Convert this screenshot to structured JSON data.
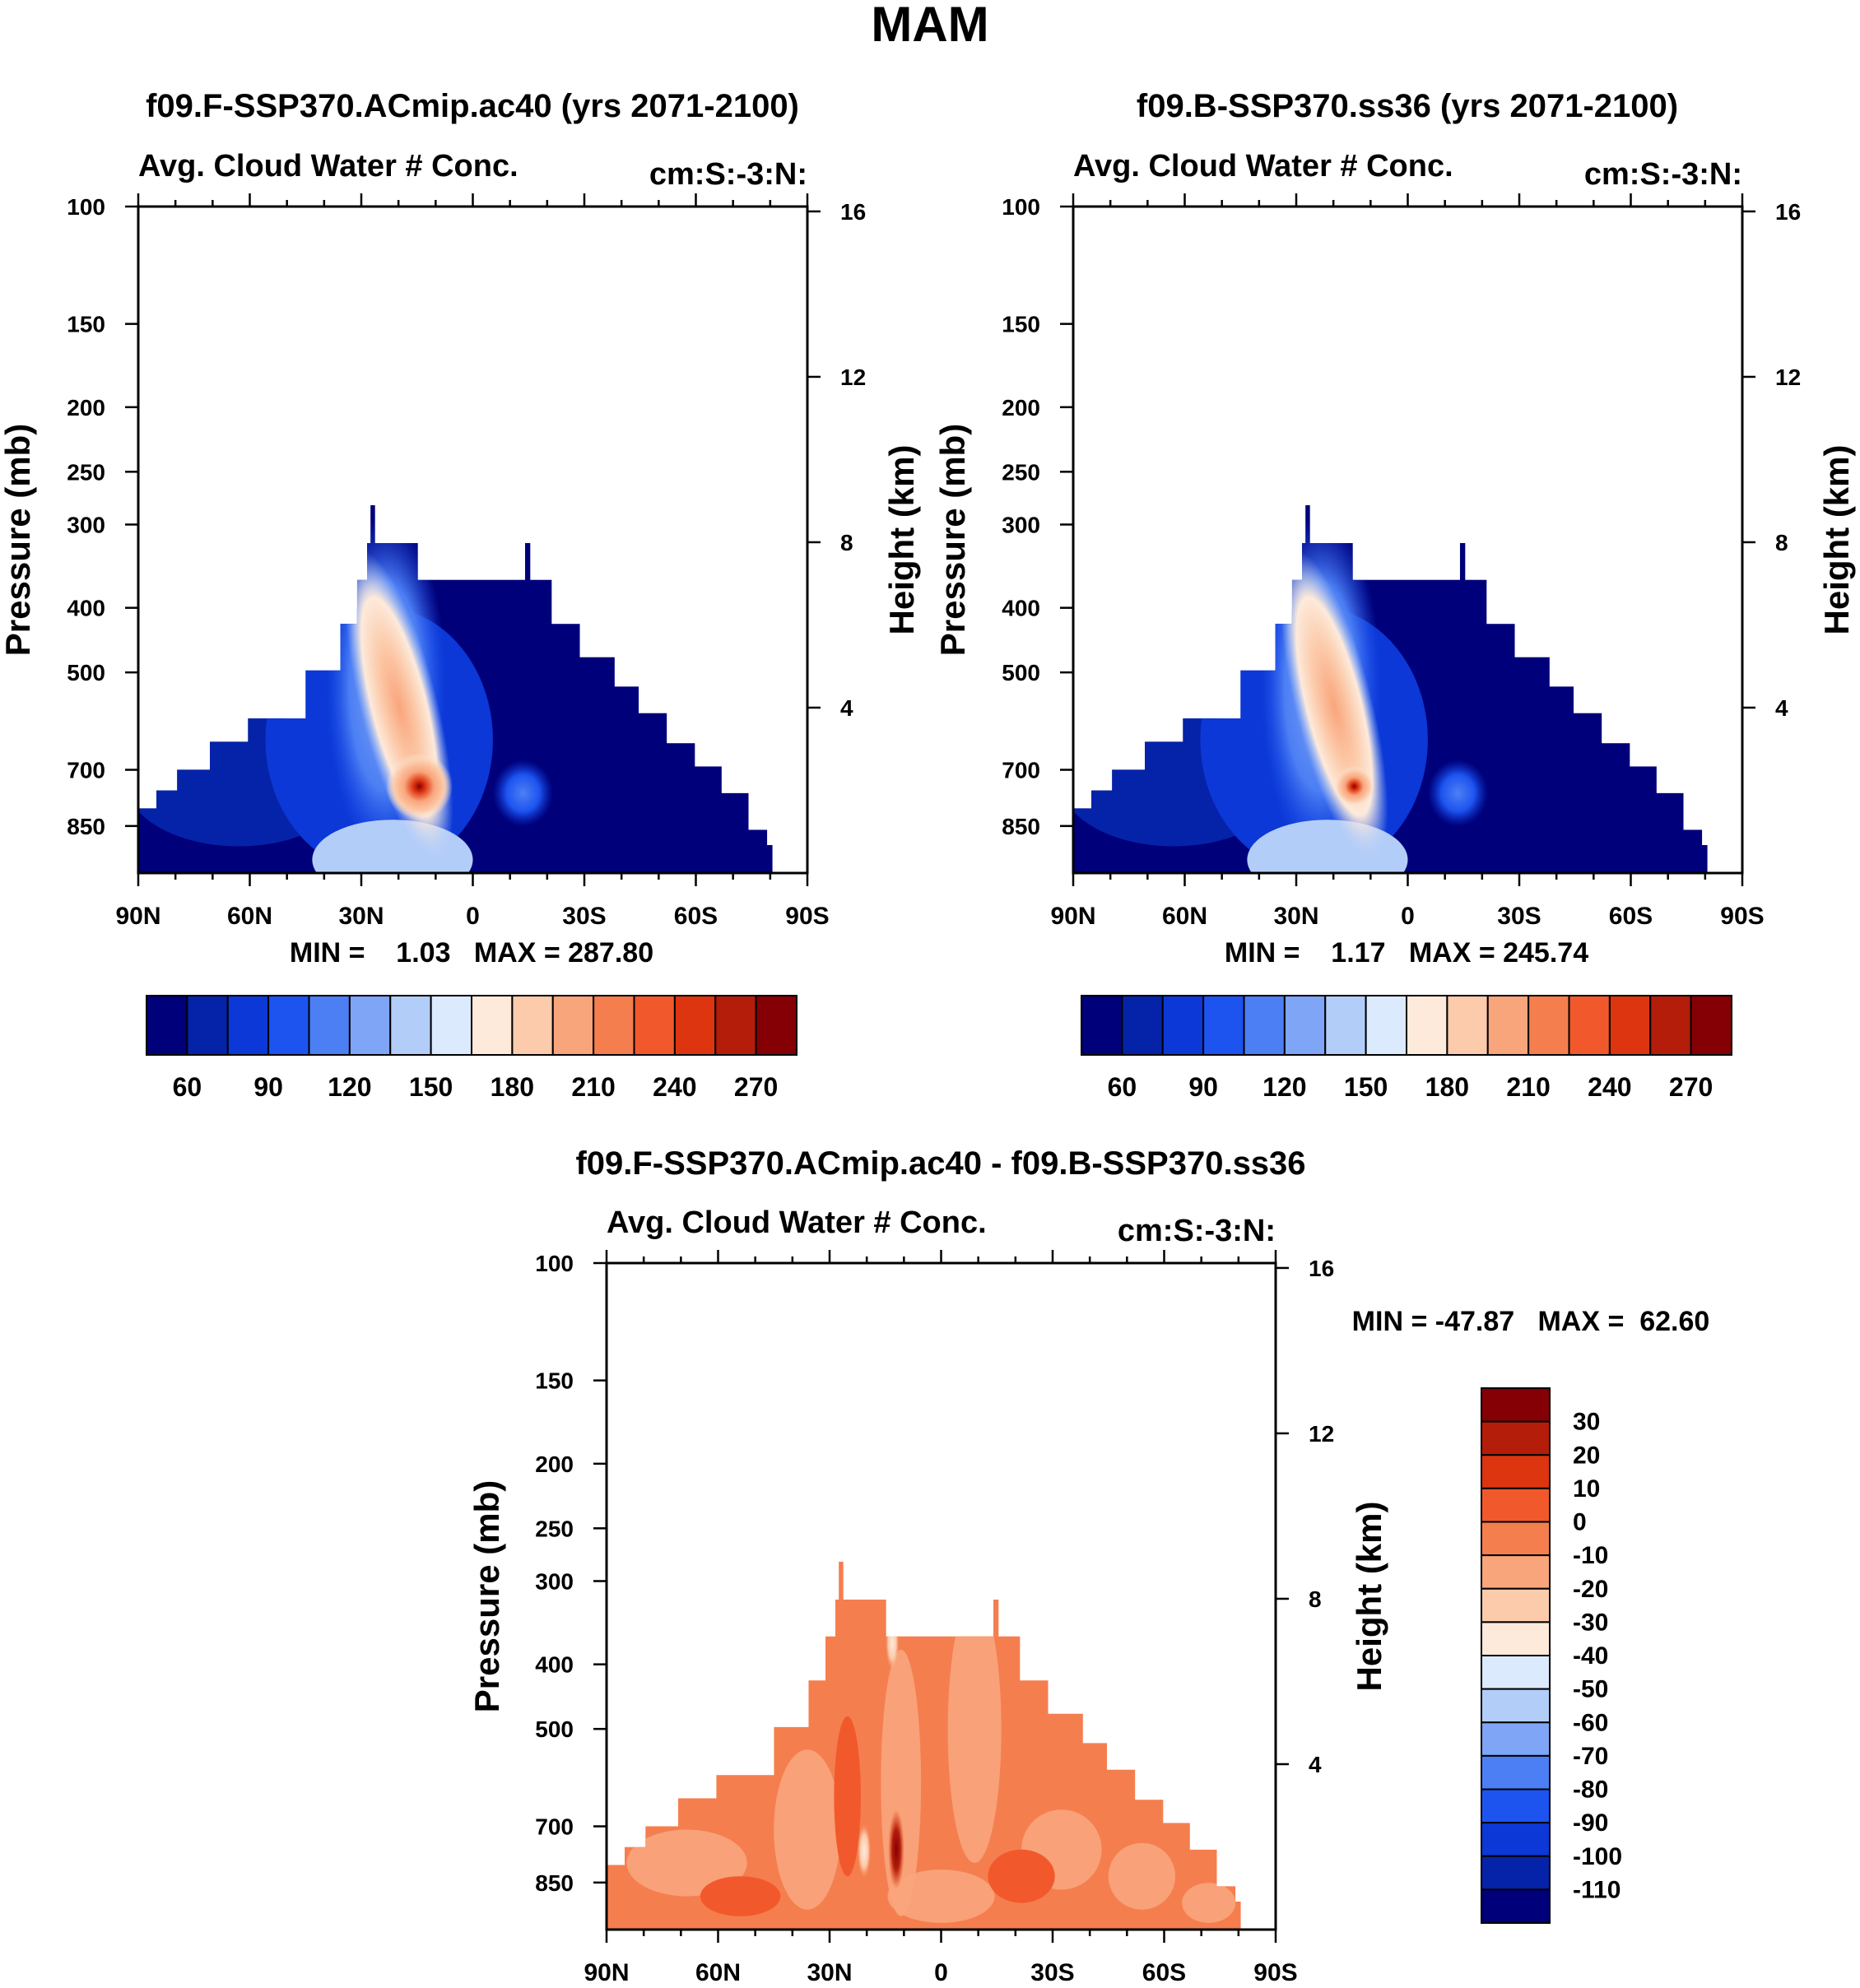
{
  "figure": {
    "title": "MAM"
  },
  "colors": {
    "top_levels": [
      "#00007a",
      "#0523a8",
      "#0b38d6",
      "#1d54f0",
      "#4d7ff4",
      "#7fa5f6",
      "#b3cdf9",
      "#dbeafd",
      "#fdeadb",
      "#fccbab",
      "#f9a57c",
      "#f57e4f",
      "#f1592c",
      "#dc3510",
      "#b31d0a",
      "#850005"
    ],
    "diff_levels": [
      "#00007a",
      "#0523a8",
      "#0b38d6",
      "#1d54f0",
      "#4d7ff4",
      "#7fa5f6",
      "#b3cdf9",
      "#dbeafd",
      "#fdeadb",
      "#fccbab",
      "#f9a57c",
      "#f57e4f",
      "#f1592c",
      "#dc3510",
      "#b31d0a",
      "#850005"
    ]
  },
  "chart_data": [
    {
      "type": "heatmap",
      "title": "f09.F-SSP370.ACmip.ac40 (yrs 2071-2100)",
      "left_label": "Avg. Cloud Water # Conc.",
      "right_label": "cm:S:-3:N:",
      "xlabel": "",
      "ylabel": "Pressure (mb)",
      "y2label": "Height (km)",
      "x_tick_labels": [
        "90N",
        "60N",
        "30N",
        "0",
        "30S",
        "60S",
        "90S"
      ],
      "x_ticks": [
        -90,
        -60,
        -30,
        0,
        30,
        60,
        90
      ],
      "xlim": [
        -90,
        90
      ],
      "y_ticks": [
        100,
        150,
        200,
        250,
        300,
        400,
        500,
        700,
        850
      ],
      "y_tick_labels": [
        "100",
        "150",
        "200",
        "250",
        "300",
        "400",
        "500",
        "700",
        "850"
      ],
      "ylim": [
        100,
        1000
      ],
      "y2_ticks": [
        4,
        8,
        12,
        16
      ],
      "y2_tick_labels": [
        "4",
        "8",
        "12",
        "16"
      ],
      "stats": "MIN =    1.03   MAX = 287.80",
      "levels": [
        60,
        90,
        120,
        150,
        180,
        210,
        240,
        270
      ],
      "colorbar_labels": [
        "60",
        "90",
        "120",
        "150",
        "180",
        "210",
        "240",
        "270"
      ],
      "max_value": 287.8,
      "min_value": 1.03
    },
    {
      "type": "heatmap",
      "title": "f09.B-SSP370.ss36 (yrs 2071-2100)",
      "left_label": "Avg. Cloud Water # Conc.",
      "right_label": "cm:S:-3:N:",
      "xlabel": "",
      "ylabel": "Pressure (mb)",
      "y2label": "Height (km)",
      "x_tick_labels": [
        "90N",
        "60N",
        "30N",
        "0",
        "30S",
        "60S",
        "90S"
      ],
      "x_ticks": [
        -90,
        -60,
        -30,
        0,
        30,
        60,
        90
      ],
      "xlim": [
        -90,
        90
      ],
      "y_ticks": [
        100,
        150,
        200,
        250,
        300,
        400,
        500,
        700,
        850
      ],
      "y_tick_labels": [
        "100",
        "150",
        "200",
        "250",
        "300",
        "400",
        "500",
        "700",
        "850"
      ],
      "ylim": [
        100,
        1000
      ],
      "y2_ticks": [
        4,
        8,
        12,
        16
      ],
      "y2_tick_labels": [
        "4",
        "8",
        "12",
        "16"
      ],
      "stats": "MIN =    1.17   MAX = 245.74",
      "levels": [
        60,
        90,
        120,
        150,
        180,
        210,
        240,
        270
      ],
      "colorbar_labels": [
        "60",
        "90",
        "120",
        "150",
        "180",
        "210",
        "240",
        "270"
      ],
      "max_value": 245.74,
      "min_value": 1.17
    },
    {
      "type": "heatmap",
      "title": "f09.F-SSP370.ACmip.ac40 - f09.B-SSP370.ss36",
      "left_label": "Avg. Cloud Water # Conc.",
      "right_label": "cm:S:-3:N:",
      "xlabel": "",
      "ylabel": "Pressure (mb)",
      "y2label": "Height (km)",
      "x_tick_labels": [
        "90N",
        "60N",
        "30N",
        "0",
        "30S",
        "60S",
        "90S"
      ],
      "x_ticks": [
        -90,
        -60,
        -30,
        0,
        30,
        60,
        90
      ],
      "xlim": [
        -90,
        90
      ],
      "y_ticks": [
        100,
        150,
        200,
        250,
        300,
        400,
        500,
        700,
        850
      ],
      "y_tick_labels": [
        "100",
        "150",
        "200",
        "250",
        "300",
        "400",
        "500",
        "700",
        "850"
      ],
      "ylim": [
        100,
        1000
      ],
      "y2_ticks": [
        4,
        8,
        12,
        16
      ],
      "y2_tick_labels": [
        "4",
        "8",
        "12",
        "16"
      ],
      "stats": "MIN = -47.87   MAX =  62.60",
      "levels": [
        30,
        20,
        10,
        0,
        -10,
        -20,
        -30,
        -40,
        -50,
        -60,
        -70,
        -80,
        -90,
        -100,
        -110
      ],
      "colorbar_labels": [
        "30",
        "20",
        "10",
        "0",
        "-10",
        "-20",
        "-30",
        "-40",
        "-50",
        "-60",
        "-70",
        "-80",
        "-90",
        "-100",
        "-110"
      ],
      "max_value": 62.6,
      "min_value": -47.87
    }
  ]
}
